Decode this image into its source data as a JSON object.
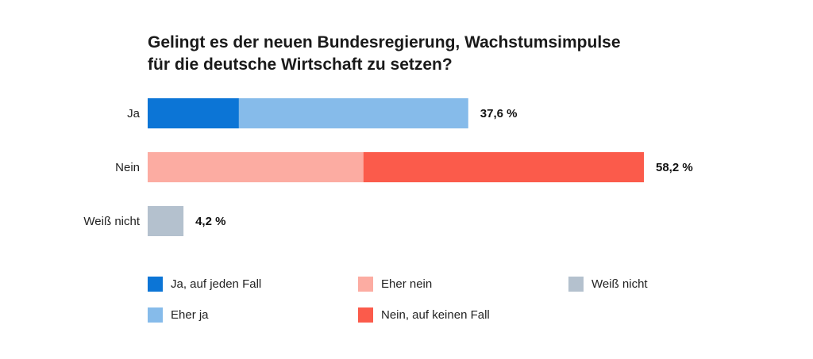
{
  "chart_data": {
    "type": "bar",
    "stacked": true,
    "orientation": "horizontal",
    "title_line1": "Gelingt es der neuen Bundesregierung, Wachstumsimpulse",
    "title_line2": "für die deutsche Wirtschaft zu setzen?",
    "categories": [
      "Ja",
      "Nein",
      "Weiß nicht"
    ],
    "totals_labels": [
      "37,6 %",
      "58,2 %",
      "4,2 %"
    ],
    "totals": [
      37.6,
      58.2,
      4.2
    ],
    "series": [
      {
        "name": "Ja, auf jeden Fall",
        "values": [
          10.7,
          0,
          0
        ],
        "color": "#0c75d6"
      },
      {
        "name": "Eher ja",
        "values": [
          26.9,
          0,
          0
        ],
        "color": "#86bbea"
      },
      {
        "name": "Eher nein",
        "values": [
          0,
          25.3,
          0
        ],
        "color": "#fcaca2"
      },
      {
        "name": "Nein, auf keinen Fall",
        "values": [
          0,
          32.9,
          0
        ],
        "color": "#fb5b4b"
      },
      {
        "name": "Weiß nicht",
        "values": [
          0,
          0,
          4.2
        ],
        "color": "#b4c1ce"
      }
    ],
    "xlim": [
      0,
      58.2
    ],
    "grid": false,
    "legend_position": "bottom"
  },
  "legend": [
    {
      "label": "Ja, auf jeden Fall",
      "color": "#0c75d6"
    },
    {
      "label": "Eher ja",
      "color": "#86bbea"
    },
    {
      "label": "Eher nein",
      "color": "#fcaca2"
    },
    {
      "label": "Nein, auf keinen Fall",
      "color": "#fb5b4b"
    },
    {
      "label": "Weiß nicht",
      "color": "#b4c1ce"
    }
  ]
}
